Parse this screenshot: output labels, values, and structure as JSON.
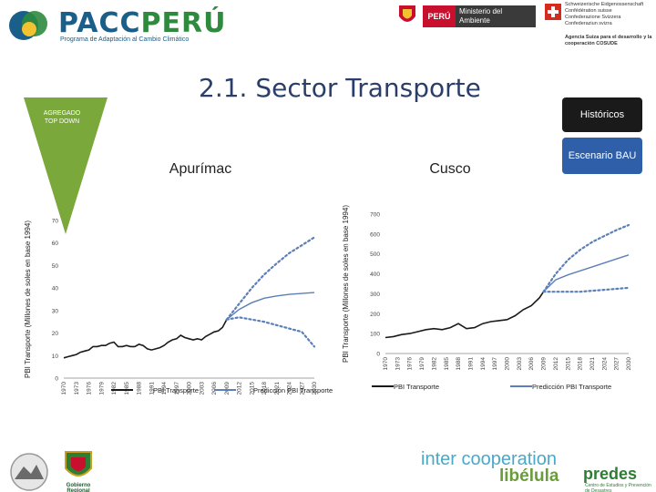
{
  "header": {
    "pacc_name_a": "PACC",
    "pacc_name_b": "PERÚ",
    "pacc_subtitle": "Programa de Adaptación al Cambio Climático",
    "minam_country": "PERÚ",
    "minam_ministry": "Ministerio del Ambiente",
    "swiss_lines": [
      "Schweizerische Eidgenossenschaft",
      "Confédération suisse",
      "Confederazione Svizzera",
      "Confederaziun svizra"
    ],
    "swiss_agency": "Agencia Suiza para el desarrollo y la cooperación COSUDE"
  },
  "slide": {
    "title": "2.1. Sector Transporte",
    "funnel_label": "AGREGADO TOP DOWN",
    "historicos_button": "Históricos",
    "bau_button": "Escenario BAU"
  },
  "colors": {
    "historic": "#1a1a1a",
    "prediction": "#5b7fb8",
    "funnel": "#7aa83a",
    "hist_box": "#1a1a1a",
    "bau_box": "#2f5fa8"
  },
  "chart_data": [
    {
      "type": "line",
      "title": "Apurímac",
      "ylabel": "PBI Transporte (Millones de soles en base 1994)",
      "ylim": [
        0,
        70
      ],
      "yticks": [
        0,
        10,
        20,
        30,
        40,
        50,
        60,
        70
      ],
      "xlim": [
        1970,
        2030
      ],
      "xticks": [
        "1970",
        "1973",
        "1976",
        "1979",
        "1982",
        "1985",
        "1988",
        "1991",
        "1994",
        "1997",
        "2000",
        "2003",
        "2006",
        "2009",
        "2012",
        "2015",
        "2018",
        "2021",
        "2024",
        "2027",
        "2030"
      ],
      "legend": {
        "placement": "bottom"
      },
      "series": [
        {
          "name": "PBI Transporte",
          "style": "solid",
          "x": [
            1970,
            1971,
            1972,
            1973,
            1974,
            1975,
            1976,
            1977,
            1978,
            1979,
            1980,
            1981,
            1982,
            1983,
            1984,
            1985,
            1986,
            1987,
            1988,
            1989,
            1990,
            1991,
            1992,
            1993,
            1994,
            1995,
            1996,
            1997,
            1998,
            1999,
            2000,
            2001,
            2002,
            2003,
            2004,
            2005,
            2006,
            2007,
            2008,
            2009
          ],
          "values": [
            9,
            9.5,
            10,
            10.5,
            11.5,
            12,
            12.5,
            14,
            14,
            14.5,
            14.5,
            15.5,
            16,
            14,
            14,
            14.5,
            14,
            14,
            15,
            14.5,
            13,
            12.5,
            13,
            13.5,
            14.5,
            16,
            17,
            17.5,
            19,
            18,
            17.5,
            17,
            17.5,
            17,
            18.5,
            19.5,
            20.5,
            21,
            22.5,
            26
          ]
        },
        {
          "name": "Predicción PBI Transporte",
          "style": "solid",
          "x": [
            2009,
            2012,
            2015,
            2018,
            2021,
            2024,
            2027,
            2030
          ],
          "values": [
            26,
            30.5,
            33.5,
            35.5,
            36.5,
            37.2,
            37.6,
            38
          ]
        },
        {
          "name": "",
          "style": "dotted",
          "x": [
            2009,
            2012,
            2015,
            2018,
            2021,
            2024,
            2027,
            2030
          ],
          "values": [
            26,
            33,
            40,
            46,
            51,
            55.5,
            59,
            62.5
          ]
        },
        {
          "name": "",
          "style": "dotted",
          "x": [
            2009,
            2012,
            2015,
            2018,
            2021,
            2024,
            2027,
            2030
          ],
          "values": [
            26,
            27,
            26,
            25,
            23.5,
            22,
            20.5,
            14
          ]
        }
      ]
    },
    {
      "type": "line",
      "title": "Cusco",
      "ylabel": "PBI Transporte (Millones de soles en base 1994)",
      "ylim": [
        0,
        700
      ],
      "yticks": [
        0,
        100,
        200,
        300,
        400,
        500,
        600,
        700
      ],
      "xlim": [
        1970,
        2030
      ],
      "xticks": [
        "1970",
        "1973",
        "1976",
        "1979",
        "1982",
        "1985",
        "1988",
        "1991",
        "1994",
        "1997",
        "2000",
        "2003",
        "2006",
        "2009",
        "2012",
        "2015",
        "2018",
        "2021",
        "2024",
        "2027",
        "2030"
      ],
      "legend": {
        "placement": "bottom"
      },
      "series": [
        {
          "name": "PBI Transporte",
          "style": "solid",
          "x": [
            1970,
            1972,
            1974,
            1976,
            1978,
            1980,
            1982,
            1984,
            1986,
            1988,
            1990,
            1992,
            1994,
            1996,
            1998,
            2000,
            2002,
            2004,
            2006,
            2008,
            2009
          ],
          "values": [
            80,
            85,
            95,
            100,
            110,
            120,
            125,
            120,
            130,
            150,
            125,
            130,
            150,
            160,
            165,
            170,
            190,
            220,
            240,
            280,
            310
          ]
        },
        {
          "name": "Predicción PBI Transporte",
          "style": "solid",
          "x": [
            2009,
            2012,
            2015,
            2018,
            2021,
            2024,
            2027,
            2030
          ],
          "values": [
            310,
            370,
            395,
            415,
            435,
            455,
            475,
            495
          ]
        },
        {
          "name": "",
          "style": "dotted",
          "x": [
            2009,
            2012,
            2015,
            2018,
            2021,
            2024,
            2027,
            2030
          ],
          "values": [
            310,
            400,
            470,
            520,
            560,
            590,
            620,
            645
          ]
        },
        {
          "name": "",
          "style": "dotted",
          "x": [
            2009,
            2012,
            2015,
            2018,
            2021,
            2024,
            2027,
            2030
          ],
          "values": [
            310,
            310,
            310,
            310,
            315,
            320,
            325,
            330
          ]
        }
      ]
    }
  ],
  "footer": {
    "intercoop": "inter cooperation",
    "libelula": "libélula",
    "predes": "predes",
    "predes_sub": "Centro de Estudios y Prevención de Desastres",
    "apurimac": "Gobierno Regional Apurímac"
  }
}
